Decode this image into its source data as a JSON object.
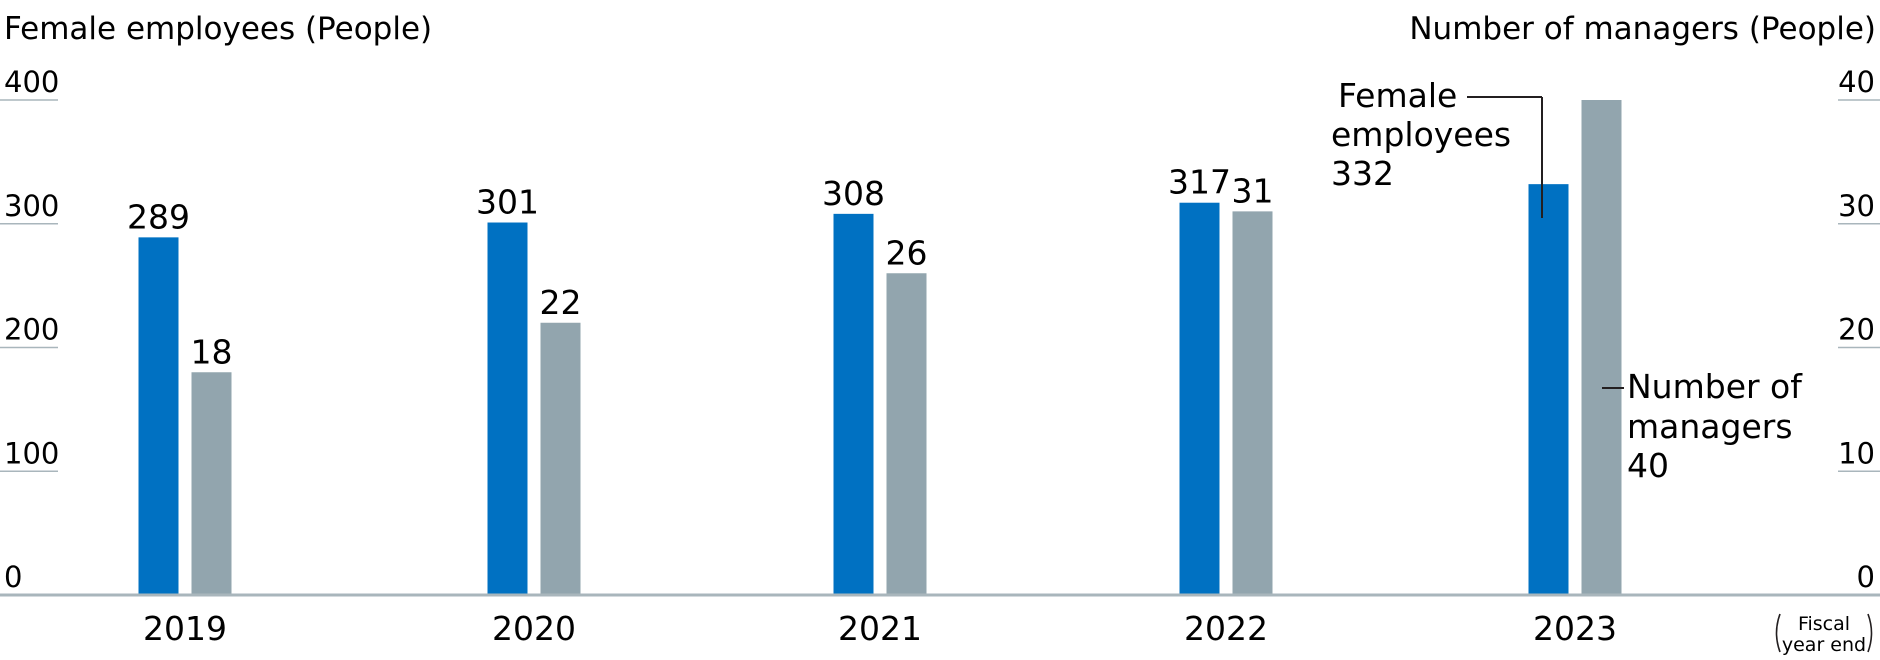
{
  "chart_data": {
    "type": "bar",
    "y_left_label": "Female employees (People)",
    "y_right_label": "Number of managers (People)",
    "xlabel_note": [
      "Fiscal",
      "year end"
    ],
    "categories": [
      "2019",
      "2020",
      "2021",
      "2022",
      "2023"
    ],
    "series": [
      {
        "name": "Female employees",
        "axis": "left",
        "values": [
          289,
          301,
          308,
          317,
          332
        ],
        "color": "#0071c2"
      },
      {
        "name": "Number of managers",
        "axis": "right",
        "values": [
          18,
          22,
          26,
          31,
          40
        ],
        "color": "#92a5ae"
      }
    ],
    "y_left": {
      "min": 0,
      "max": 400,
      "ticks": [
        "0",
        "100",
        "200",
        "300",
        "400"
      ]
    },
    "y_right": {
      "min": 0,
      "max": 40,
      "ticks": [
        "0",
        "10",
        "20",
        "30",
        "40"
      ]
    },
    "data_labels": {
      "Female employees": [
        "289",
        "301",
        "308",
        "317",
        ""
      ],
      "Number of managers": [
        "18",
        "22",
        "26",
        "31",
        ""
      ]
    },
    "callouts": {
      "female": [
        "Female",
        "employees",
        "332"
      ],
      "managers": [
        "Number of",
        "managers",
        "40"
      ]
    },
    "grid": false,
    "legend": "callouts on last category"
  }
}
